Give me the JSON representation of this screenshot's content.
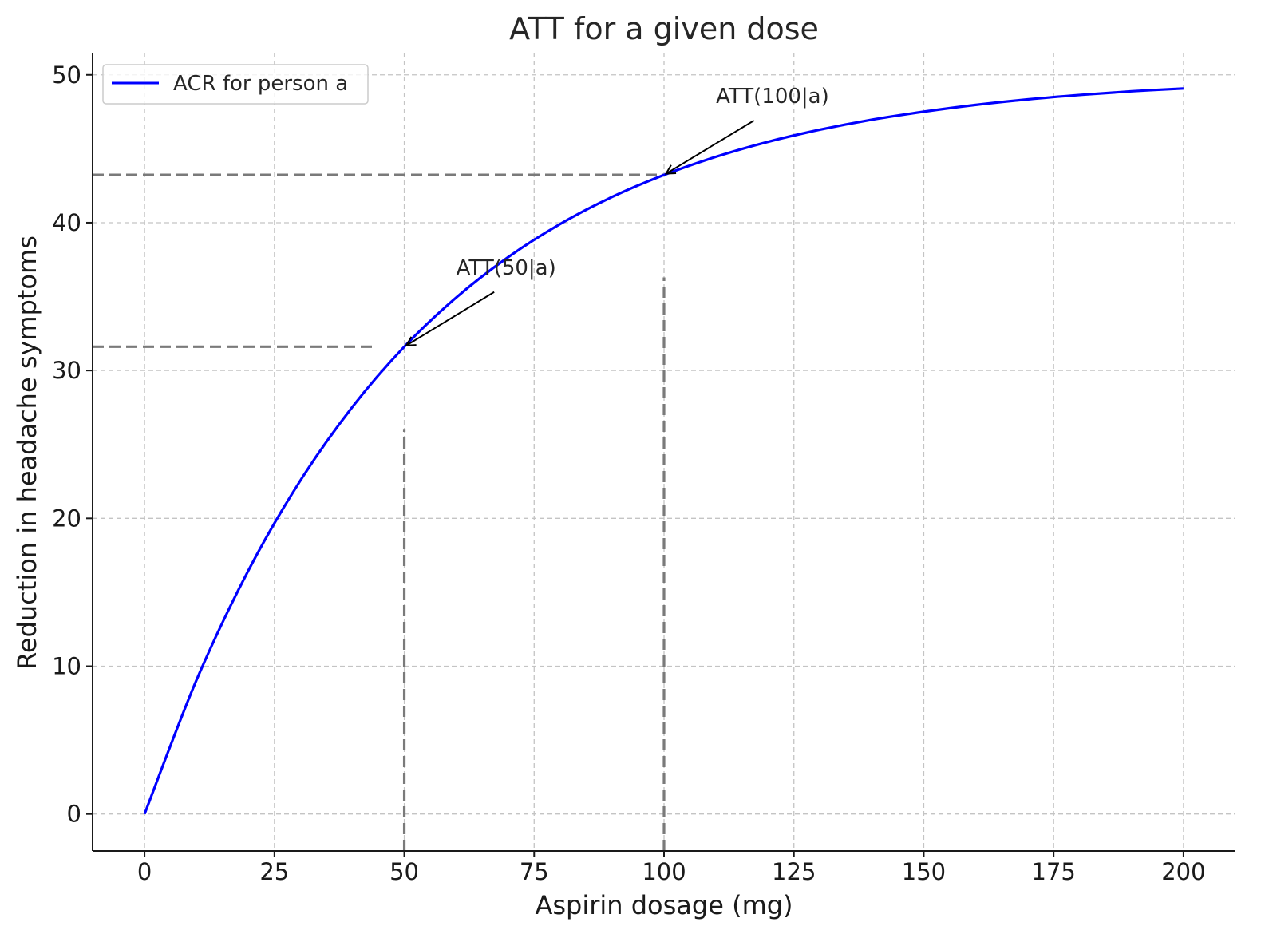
{
  "chart_data": {
    "type": "line",
    "title": "ATT for a given dose",
    "xlabel": "Aspirin dosage (mg)",
    "ylabel": "Reduction in headache symptoms",
    "xlim": [
      -10,
      210
    ],
    "ylim": [
      -2.5,
      51.5
    ],
    "xticks": [
      0,
      25,
      50,
      75,
      100,
      125,
      150,
      175,
      200
    ],
    "yticks": [
      0,
      10,
      20,
      30,
      40,
      50
    ],
    "grid": true,
    "legend_position": "top-left",
    "series": [
      {
        "name": "ACR for person a",
        "color": "#0000ff",
        "x": [
          0,
          10,
          20,
          30,
          40,
          50,
          60,
          70,
          80,
          90,
          100,
          110,
          120,
          130,
          140,
          150,
          160,
          170,
          180,
          190,
          200
        ],
        "y": [
          0,
          9.06,
          16.48,
          22.56,
          27.53,
          31.61,
          34.94,
          37.67,
          39.91,
          41.74,
          43.23,
          44.46,
          45.47,
          46.29,
          46.97,
          47.51,
          47.97,
          48.34,
          48.64,
          48.89,
          49.08
        ]
      }
    ],
    "reference_lines": [
      {
        "kind": "horizontal",
        "y": 43.23,
        "x_from": -10,
        "x_to": 100,
        "color": "#7a7a7a"
      },
      {
        "kind": "vertical",
        "x": 100,
        "y_from": -2.5,
        "y_to": 36.3,
        "color": "#7a7a7a"
      },
      {
        "kind": "horizontal",
        "y": 31.61,
        "x_from": -10,
        "x_to": 45,
        "color": "#7a7a7a"
      },
      {
        "kind": "vertical",
        "x": 50,
        "y_from": -2.5,
        "y_to": 26,
        "color": "#7a7a7a"
      }
    ],
    "annotations": [
      {
        "text": "ATT(100|a)",
        "point": [
          100,
          43.23
        ],
        "text_at": [
          110,
          48.1
        ]
      },
      {
        "text": "ATT(50|a)",
        "point": [
          50,
          31.61
        ],
        "text_at": [
          60,
          36.5
        ]
      }
    ]
  }
}
